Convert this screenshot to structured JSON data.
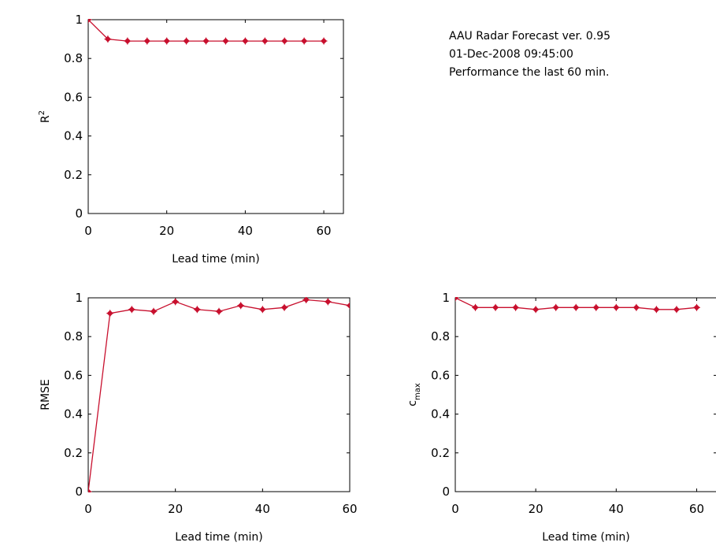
{
  "info": {
    "line1": "AAU Radar Forecast ver. 0.95",
    "line2": "01-Dec-2008 09:45:00",
    "line3": "Performance the last 60 min."
  },
  "colors": {
    "series": "#c8102e",
    "axis": "#000000"
  },
  "chart_data": [
    {
      "type": "line",
      "ylabel": "R",
      "ylabel_sup": "2",
      "ylabel_sub": "",
      "xlabel": "Lead time (min)",
      "xlim": [
        0,
        65
      ],
      "ylim": [
        0,
        1
      ],
      "xticks": [
        0,
        20,
        40,
        60
      ],
      "yticks": [
        0,
        0.2,
        0.4,
        0.6,
        0.8,
        1
      ],
      "xtick_labels": [
        "0",
        "20",
        "40",
        "60"
      ],
      "ytick_labels": [
        "0",
        "0.2",
        "0.4",
        "0.6",
        "0.8",
        "1"
      ],
      "x": [
        0,
        5,
        10,
        15,
        20,
        25,
        30,
        35,
        40,
        45,
        50,
        55,
        60
      ],
      "values": [
        1.0,
        0.9,
        0.89,
        0.89,
        0.89,
        0.89,
        0.89,
        0.89,
        0.89,
        0.89,
        0.89,
        0.89,
        0.89
      ]
    },
    {
      "type": "line",
      "ylabel": "RMSE",
      "ylabel_sup": "",
      "ylabel_sub": "",
      "xlabel": "Lead time (min)",
      "xlim": [
        0,
        60
      ],
      "ylim": [
        0,
        1
      ],
      "xticks": [
        0,
        20,
        40,
        60
      ],
      "yticks": [
        0,
        0.2,
        0.4,
        0.6,
        0.8,
        1
      ],
      "xtick_labels": [
        "0",
        "20",
        "40",
        "60"
      ],
      "ytick_labels": [
        "0",
        "0.2",
        "0.4",
        "0.6",
        "0.8",
        "1"
      ],
      "x": [
        0,
        5,
        10,
        15,
        20,
        25,
        30,
        35,
        40,
        45,
        50,
        55,
        60
      ],
      "values": [
        0.0,
        0.92,
        0.94,
        0.93,
        0.98,
        0.94,
        0.93,
        0.96,
        0.94,
        0.95,
        0.99,
        0.98,
        0.96
      ]
    },
    {
      "type": "line",
      "ylabel": "c",
      "ylabel_sup": "",
      "ylabel_sub": "max",
      "xlabel": "Lead time (min)",
      "xlim": [
        0,
        65
      ],
      "ylim": [
        0,
        1
      ],
      "xticks": [
        0,
        20,
        40,
        60
      ],
      "yticks": [
        0,
        0.2,
        0.4,
        0.6,
        0.8,
        1
      ],
      "xtick_labels": [
        "0",
        "20",
        "40",
        "60"
      ],
      "ytick_labels": [
        "0",
        "0.2",
        "0.4",
        "0.6",
        "0.8",
        "1"
      ],
      "x": [
        0,
        5,
        10,
        15,
        20,
        25,
        30,
        35,
        40,
        45,
        50,
        55,
        60
      ],
      "values": [
        1.0,
        0.95,
        0.95,
        0.95,
        0.94,
        0.95,
        0.95,
        0.95,
        0.95,
        0.95,
        0.94,
        0.94,
        0.95
      ]
    }
  ]
}
